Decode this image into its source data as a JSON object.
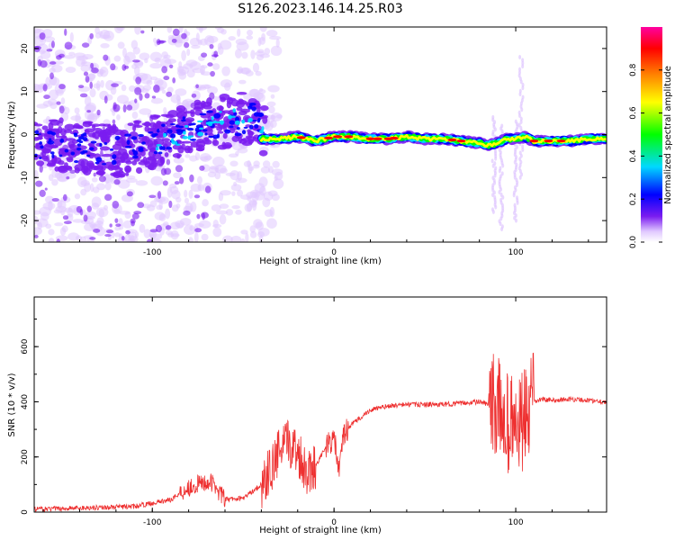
{
  "title": "S126.2023.146.14.25.R03",
  "chart_data": [
    {
      "type": "heatmap",
      "xlabel": "Height of straight line (km)",
      "ylabel": "Frequency (Hz)",
      "xlim": [
        -165,
        150
      ],
      "ylim": [
        -25,
        25
      ],
      "xticks": [
        -100,
        0,
        100
      ],
      "yticks": [
        -20,
        -10,
        0,
        10,
        20
      ],
      "colorbar": {
        "label": "Normalized spectral amplitude",
        "range": [
          0.0,
          1.0
        ],
        "ticks": [
          0.0,
          0.2,
          0.4,
          0.6,
          0.8
        ],
        "colors": [
          "#ffffff",
          "#e0c8ff",
          "#7a1cf0",
          "#0000ff",
          "#00d8ff",
          "#00ff00",
          "#ffff00",
          "#ff8000",
          "#ff0000",
          "#ff00a0"
        ]
      },
      "ridge": [
        [
          -40,
          -1
        ],
        [
          -30,
          -1
        ],
        [
          -20,
          -0.5
        ],
        [
          -10,
          -1.5
        ],
        [
          0,
          -0.5
        ],
        [
          10,
          -0.5
        ],
        [
          20,
          -1
        ],
        [
          30,
          -1
        ],
        [
          40,
          -0.5
        ],
        [
          50,
          -1
        ],
        [
          60,
          -1
        ],
        [
          70,
          -1.5
        ],
        [
          80,
          -2
        ],
        [
          85,
          -2.5
        ],
        [
          90,
          -2
        ],
        [
          95,
          -1
        ],
        [
          100,
          -1
        ],
        [
          105,
          -0.5
        ],
        [
          110,
          -1.5
        ],
        [
          120,
          -1.5
        ],
        [
          130,
          -1.5
        ],
        [
          140,
          -1
        ],
        [
          150,
          -1
        ]
      ],
      "noise_band_center": [
        [
          -165,
          -2
        ],
        [
          -140,
          -3
        ],
        [
          -120,
          -4
        ],
        [
          -100,
          -2
        ],
        [
          -80,
          1
        ],
        [
          -60,
          3
        ],
        [
          -45,
          4
        ],
        [
          -40,
          1
        ]
      ]
    },
    {
      "type": "line",
      "xlabel": "Height of straight line (km)",
      "ylabel": "SNR (10 * v/v)",
      "xlim": [
        -165,
        150
      ],
      "ylim": [
        0,
        780
      ],
      "xticks": [
        -100,
        0,
        100
      ],
      "yticks": [
        0,
        200,
        400,
        600
      ],
      "color": "#ee3030",
      "series": [
        {
          "name": "SNR",
          "x": [
            -165,
            -140,
            -110,
            -90,
            -80,
            -70,
            -66,
            -60,
            -50,
            -40,
            -35,
            -30,
            -25,
            -20,
            -15,
            -10,
            -5,
            0,
            3,
            5,
            10,
            20,
            30,
            40,
            50,
            60,
            70,
            80,
            85,
            90,
            95,
            100,
            105,
            110,
            115,
            120,
            130,
            140,
            150
          ],
          "values": [
            10,
            15,
            20,
            45,
            90,
            110,
            100,
            45,
            50,
            100,
            150,
            220,
            250,
            220,
            150,
            170,
            230,
            270,
            140,
            280,
            320,
            370,
            385,
            390,
            390,
            390,
            395,
            400,
            390,
            380,
            330,
            300,
            330,
            400,
            410,
            405,
            410,
            405,
            400
          ]
        }
      ]
    }
  ]
}
